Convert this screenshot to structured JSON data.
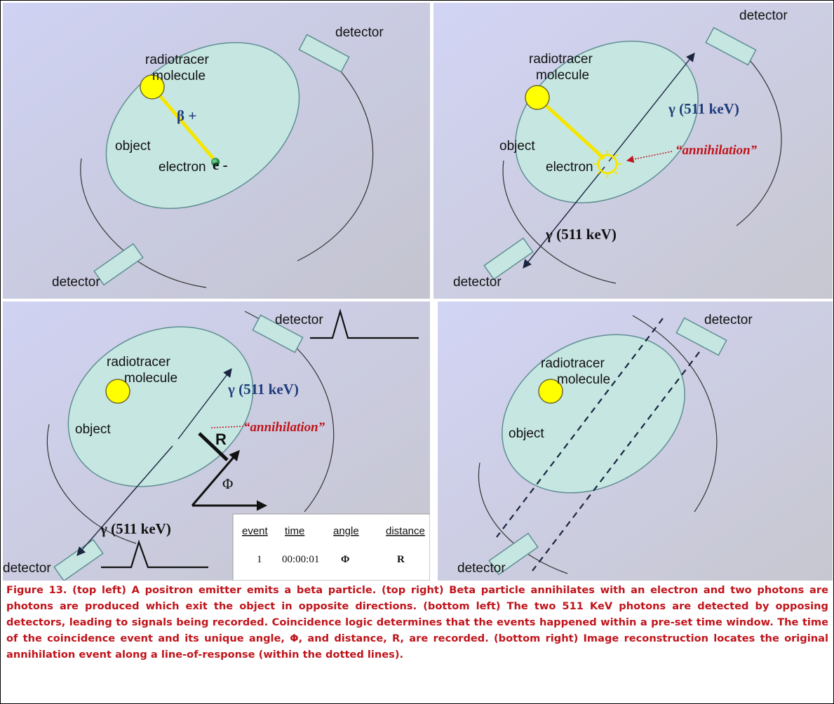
{
  "labels": {
    "detector": "detector",
    "object": "object",
    "radiotracer": "radiotracer",
    "molecule": "molecule",
    "electron": "electron",
    "beta_plus": "β +",
    "e_minus": "e -",
    "gamma_511": "γ  (511  keV)",
    "annihilation": "“annihilation”",
    "R": "R",
    "phi": "Φ"
  },
  "event_table": {
    "headers": [
      "event",
      "time",
      "angle",
      "distance"
    ],
    "row": [
      "1",
      "00:00:01",
      "Φ",
      "R"
    ]
  },
  "caption": "Figure 13.  (top left) A positron emitter emits a beta particle. (top right) Beta particle annihilates with an electron and two photons are photons are produced which exit the object in opposite directions. (bottom left) The two 511 KeV photons are detected by opposing detectors, leading to signals being recorded. Coincidence logic determines that the events happened within a pre-set time window. The time of the coincidence event and its unique angle, Φ, and distance, R, are recorded. (bottom right) Image reconstruction locates the original annihilation event along a line-of-response (within the dotted lines).",
  "colors": {
    "object_fill": "#c6e6e2",
    "object_stroke": "#5f8f92",
    "radiotracer": "#ffff00",
    "beta_track": "#f5e600",
    "electron": "#1a8a3d",
    "annihilation_text": "#c0141b",
    "gamma_text": "#1f3b7a",
    "caption_text": "#c0141b"
  }
}
